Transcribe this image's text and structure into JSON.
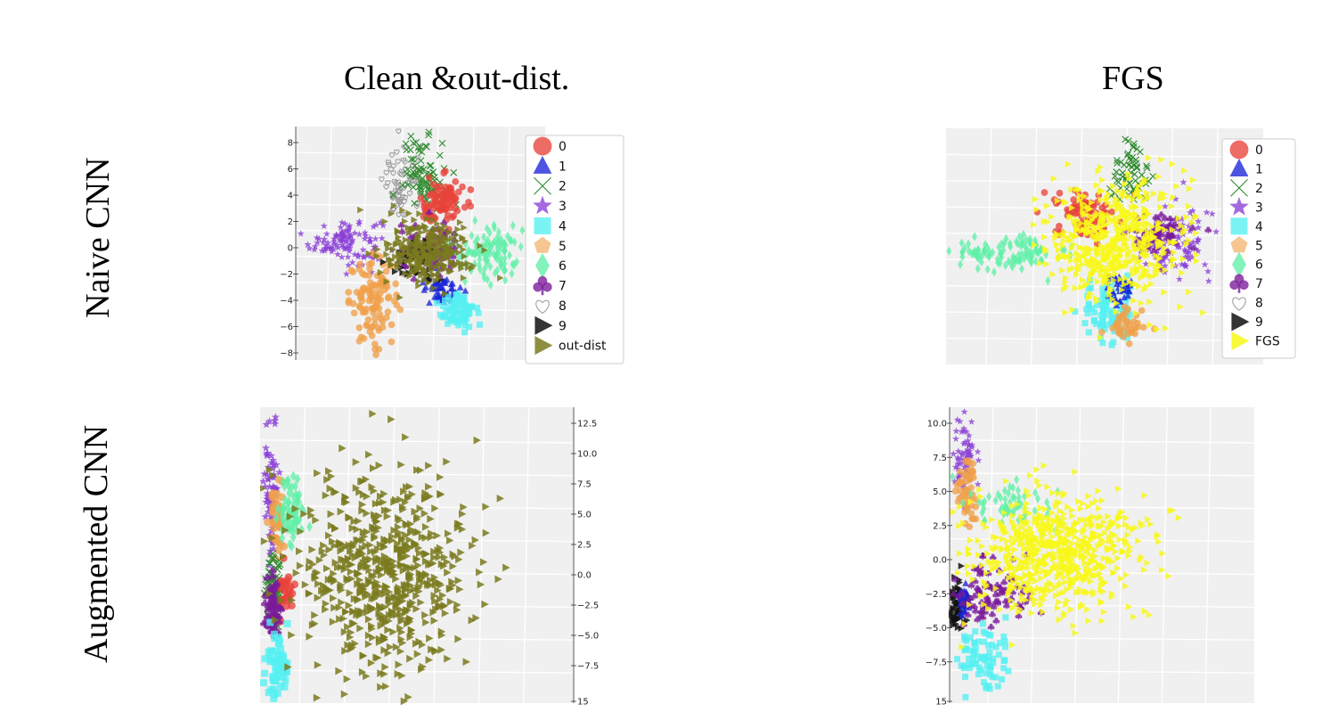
{
  "column_titles": [
    "Clean &out-dist.",
    "FGS"
  ],
  "row_titles": [
    "Naive CNN",
    "Augmented CNN"
  ],
  "colors": {
    "0": "#e8423a",
    "1": "#1a24d8",
    "2": "#2e8b2e",
    "3": "#8a3fd6",
    "4": "#55f0f2",
    "5": "#f0a04a",
    "6": "#60f0a8",
    "7": "#7a1a9a",
    "8": "#9a9a9a",
    "9": "#111111",
    "out-dist": "#7a7a1e",
    "FGS": "#f8f81a"
  },
  "chart_data": [
    {
      "type": "scatter",
      "panel": "naive-clean",
      "yticks": [
        "8",
        "6",
        "4",
        "2",
        "0",
        "−2",
        "−4",
        "−6",
        "−8"
      ],
      "legend": [
        "0",
        "1",
        "2",
        "3",
        "4",
        "5",
        "6",
        "7",
        "8",
        "9",
        "out-dist"
      ],
      "legend_placement": "right",
      "grid": true,
      "clusters": [
        {
          "class": "3",
          "cx": -4.2,
          "cy": 0.2,
          "sx": 1.0,
          "sy": 0.9,
          "n": 110,
          "marker": "star"
        },
        {
          "class": "5",
          "cx": -2.6,
          "cy": -4.5,
          "sx": 0.7,
          "sy": 1.6,
          "n": 110,
          "marker": "circle"
        },
        {
          "class": "8",
          "cx": -0.9,
          "cy": 4.5,
          "sx": 0.6,
          "sy": 1.4,
          "n": 80,
          "marker": "heart"
        },
        {
          "class": "2",
          "cx": 0.2,
          "cy": 5.5,
          "sx": 0.6,
          "sy": 1.4,
          "n": 80,
          "marker": "x"
        },
        {
          "class": "0",
          "cx": 1.2,
          "cy": 3.0,
          "sx": 0.6,
          "sy": 1.0,
          "n": 90,
          "marker": "circle"
        },
        {
          "class": "6",
          "cx": 3.8,
          "cy": -0.5,
          "sx": 1.1,
          "sy": 1.1,
          "n": 110,
          "marker": "diamond"
        },
        {
          "class": "1",
          "cx": 1.2,
          "cy": -3.6,
          "sx": 0.5,
          "sy": 0.6,
          "n": 60,
          "marker": "triangle"
        },
        {
          "class": "4",
          "cx": 2.2,
          "cy": -5.2,
          "sx": 0.6,
          "sy": 0.8,
          "n": 70,
          "marker": "square"
        },
        {
          "class": "7",
          "cx": 0.5,
          "cy": -0.8,
          "sx": 0.9,
          "sy": 1.0,
          "n": 80,
          "marker": "club"
        },
        {
          "class": "9",
          "cx": -0.2,
          "cy": -1.2,
          "sx": 0.6,
          "sy": 0.8,
          "n": 60,
          "marker": "tri-right"
        },
        {
          "class": "out-dist",
          "cx": 0.4,
          "cy": -0.6,
          "sx": 1.2,
          "sy": 1.2,
          "n": 260,
          "marker": "tri-right"
        }
      ],
      "xlim": [
        -7,
        7
      ],
      "ylim": [
        -9,
        9
      ]
    },
    {
      "type": "scatter",
      "panel": "naive-fgs",
      "legend": [
        "0",
        "1",
        "2",
        "3",
        "4",
        "5",
        "6",
        "7",
        "8",
        "9",
        "FGS"
      ],
      "legend_placement": "right",
      "grid": true,
      "clusters": [
        {
          "class": "6",
          "cx": -4.5,
          "cy": -0.5,
          "sx": 1.6,
          "sy": 0.6,
          "n": 120,
          "marker": "diamond"
        },
        {
          "class": "0",
          "cx": -0.8,
          "cy": 2.5,
          "sx": 0.7,
          "sy": 0.9,
          "n": 80,
          "marker": "circle"
        },
        {
          "class": "2",
          "cx": 0.9,
          "cy": 5.5,
          "sx": 0.5,
          "sy": 1.3,
          "n": 60,
          "marker": "x"
        },
        {
          "class": "3",
          "cx": 3.0,
          "cy": 0.3,
          "sx": 0.8,
          "sy": 1.4,
          "n": 110,
          "marker": "star"
        },
        {
          "class": "4",
          "cx": 0.2,
          "cy": -5.0,
          "sx": 0.6,
          "sy": 1.1,
          "n": 90,
          "marker": "square"
        },
        {
          "class": "5",
          "cx": 1.0,
          "cy": -6.0,
          "sx": 0.4,
          "sy": 0.8,
          "n": 40,
          "marker": "circle"
        },
        {
          "class": "1",
          "cx": 0.6,
          "cy": -3.2,
          "sx": 0.3,
          "sy": 0.6,
          "n": 40,
          "marker": "triangle"
        },
        {
          "class": "7",
          "cx": 2.3,
          "cy": 0.8,
          "sx": 0.6,
          "sy": 0.7,
          "n": 70,
          "marker": "club"
        },
        {
          "class": "FGS",
          "cx": 0.6,
          "cy": 0.5,
          "sx": 1.5,
          "sy": 2.3,
          "n": 520,
          "marker": "tri-right"
        }
      ],
      "xlim": [
        -7,
        7
      ],
      "ylim": [
        -9,
        9
      ]
    },
    {
      "type": "scatter",
      "panel": "augmented-clean",
      "yticks": [
        "12.5",
        "10.0",
        "7.5",
        "5.0",
        "2.5",
        "0.0",
        "−2.5",
        "−5.0",
        "−7.5",
        "15"
      ],
      "grid": true,
      "clusters": [
        {
          "class": "3",
          "cx": -9.2,
          "cy": 6.0,
          "sx": 0.25,
          "sy": 2.8,
          "n": 70,
          "marker": "star"
        },
        {
          "class": "5",
          "cx": -8.8,
          "cy": 3.5,
          "sx": 0.25,
          "sy": 1.6,
          "n": 40,
          "marker": "circle"
        },
        {
          "class": "6",
          "cx": -7.8,
          "cy": 4.5,
          "sx": 0.5,
          "sy": 1.3,
          "n": 60,
          "marker": "diamond"
        },
        {
          "class": "2",
          "cx": -9.0,
          "cy": -1.5,
          "sx": 0.3,
          "sy": 1.5,
          "n": 60,
          "marker": "x"
        },
        {
          "class": "0",
          "cx": -8.2,
          "cy": -2.0,
          "sx": 0.3,
          "sy": 0.8,
          "n": 30,
          "marker": "circle"
        },
        {
          "class": "7",
          "cx": -9.1,
          "cy": -3.0,
          "sx": 0.3,
          "sy": 1.4,
          "n": 60,
          "marker": "club"
        },
        {
          "class": "4",
          "cx": -8.8,
          "cy": -7.5,
          "sx": 0.4,
          "sy": 1.3,
          "n": 60,
          "marker": "square"
        },
        {
          "class": "out-dist",
          "cx": -1.5,
          "cy": -0.5,
          "sx": 3.0,
          "sy": 3.8,
          "n": 620,
          "marker": "tri-right"
        }
      ],
      "xlim": [
        -10,
        12
      ],
      "ylim": [
        -10.5,
        12.5
      ]
    },
    {
      "type": "scatter",
      "panel": "augmented-fgs",
      "yticks": [
        "10.0",
        "7.5",
        "5.0",
        "2.5",
        "0.0",
        "−2.5",
        "−5.0",
        "−7.5",
        "15"
      ],
      "grid": true,
      "clusters": [
        {
          "class": "3",
          "cx": -8.9,
          "cy": 7.5,
          "sx": 0.4,
          "sy": 1.5,
          "n": 60,
          "marker": "star"
        },
        {
          "class": "5",
          "cx": -8.7,
          "cy": 4.5,
          "sx": 0.4,
          "sy": 1.5,
          "n": 50,
          "marker": "circle"
        },
        {
          "class": "6",
          "cx": -5.5,
          "cy": 4.0,
          "sx": 1.5,
          "sy": 0.9,
          "n": 60,
          "marker": "diamond"
        },
        {
          "class": "9",
          "cx": -9.4,
          "cy": -3.2,
          "sx": 0.4,
          "sy": 1.0,
          "n": 60,
          "marker": "tri-right"
        },
        {
          "class": "1",
          "cx": -9.0,
          "cy": -3.0,
          "sx": 0.3,
          "sy": 0.6,
          "n": 30,
          "marker": "triangle"
        },
        {
          "class": "7",
          "cx": -7.0,
          "cy": -2.5,
          "sx": 1.4,
          "sy": 1.3,
          "n": 90,
          "marker": "club"
        },
        {
          "class": "4",
          "cx": -7.8,
          "cy": -7.5,
          "sx": 0.9,
          "sy": 1.4,
          "n": 80,
          "marker": "square"
        },
        {
          "class": "FGS",
          "cx": -2.5,
          "cy": 0.5,
          "sx": 3.4,
          "sy": 2.2,
          "n": 650,
          "marker": "tri-right"
        }
      ],
      "xlim": [
        -10,
        12
      ],
      "ylim": [
        -10.5,
        11
      ]
    }
  ]
}
